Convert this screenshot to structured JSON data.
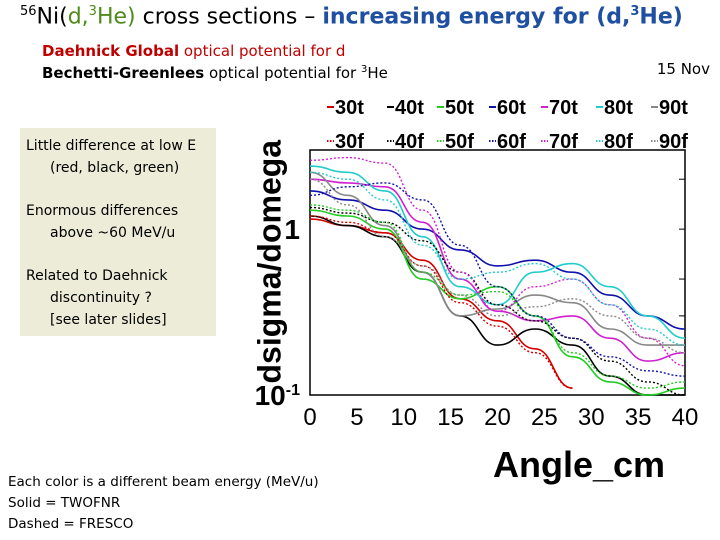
{
  "title": {
    "superscript_mass": "56",
    "prefix": "Ni(",
    "d": "d,",
    "sup3": "3",
    "he": "He)",
    "rest": " cross sections – ",
    "highlight": "increasing energy for (d,",
    "highlight_sup": "3",
    "highlight_end": "He)"
  },
  "subtitle1": {
    "bold": "Daehnick Global",
    "rest": " optical potential for d"
  },
  "subtitle2": {
    "bold": "Bechetti-Greenlees",
    "rest": " optical potential for ",
    "sup": "3",
    "end": "He"
  },
  "date": "15 Nov",
  "notes": {
    "n1a": "Little difference at low E",
    "n1b": "(red, black, green)",
    "n2a": "Enormous differences",
    "n2b": "above ~60 MeV/u",
    "n3a": "Related to Daehnick",
    "n3b": "discontinuity ?",
    "n3c": "[see later slides]"
  },
  "footer": {
    "line1": "Each color is a different beam energy (MeV/u)",
    "line2": "Solid = TWOFNR",
    "line3": "Dashed = FRESCO"
  },
  "chart_data": {
    "type": "line",
    "xlabel": "Angle_cm",
    "ylabel": "dsigma/domega",
    "xlim": [
      0,
      40
    ],
    "ylim": [
      0.1,
      3
    ],
    "yscale": "log",
    "xticks": [
      "0",
      "5",
      "10",
      "15",
      "20",
      "25",
      "30",
      "35",
      "40"
    ],
    "yticks": [
      {
        "value": 1,
        "label": "1"
      },
      {
        "value": 0.1,
        "label": "10-1"
      }
    ],
    "legend_placement": "top",
    "series": [
      {
        "name": "30t",
        "color": "#d40000",
        "dash": false,
        "x": [
          0,
          4,
          8,
          12,
          16,
          20,
          24,
          28
        ],
        "y": [
          1.15,
          1.05,
          0.95,
          0.65,
          0.38,
          0.28,
          0.19,
          0.11
        ]
      },
      {
        "name": "40t",
        "color": "#000000",
        "dash": false,
        "x": [
          0,
          4,
          8,
          12,
          16,
          20,
          24,
          28,
          32,
          36,
          40
        ],
        "y": [
          1.2,
          1.05,
          0.9,
          0.55,
          0.3,
          0.2,
          0.25,
          0.2,
          0.13,
          0.1,
          0.1
        ]
      },
      {
        "name": "50t",
        "color": "#22cc22",
        "dash": false,
        "x": [
          0,
          4,
          8,
          12,
          16,
          20,
          24,
          28,
          32,
          36,
          40
        ],
        "y": [
          1.3,
          1.2,
          1.0,
          0.5,
          0.38,
          0.45,
          0.3,
          0.17,
          0.12,
          0.1,
          0.11
        ]
      },
      {
        "name": "60t",
        "color": "#1010aa",
        "dash": false,
        "x": [
          0,
          4,
          8,
          12,
          16,
          20,
          24,
          28,
          32,
          36,
          40
        ],
        "y": [
          1.7,
          1.5,
          1.3,
          1.0,
          0.75,
          0.6,
          0.65,
          0.55,
          0.4,
          0.3,
          0.25
        ]
      },
      {
        "name": "70t",
        "color": "#d020d0",
        "dash": false,
        "x": [
          0,
          4,
          8,
          12,
          16,
          20,
          24,
          28,
          32,
          36,
          40
        ],
        "y": [
          2.0,
          1.9,
          1.8,
          1.1,
          0.5,
          0.32,
          0.28,
          0.3,
          0.22,
          0.16,
          0.18
        ]
      },
      {
        "name": "80t",
        "color": "#22cccc",
        "dash": false,
        "x": [
          0,
          4,
          8,
          12,
          16,
          20,
          24,
          28,
          32,
          36,
          40
        ],
        "y": [
          2.4,
          2.2,
          1.7,
          0.9,
          0.45,
          0.35,
          0.55,
          0.62,
          0.45,
          0.3,
          0.22
        ]
      },
      {
        "name": "90t",
        "color": "#888888",
        "dash": false,
        "x": [
          0,
          4,
          8,
          12,
          16,
          20,
          24,
          28,
          32,
          36,
          40
        ],
        "y": [
          2.2,
          1.6,
          1.05,
          0.55,
          0.3,
          0.33,
          0.4,
          0.36,
          0.25,
          0.2,
          0.2
        ]
      },
      {
        "name": "30f",
        "color": "#d40000",
        "dash": true,
        "x": [
          0,
          4,
          8,
          12,
          16,
          20,
          24,
          28
        ],
        "y": [
          1.2,
          1.1,
          0.95,
          0.6,
          0.36,
          0.26,
          0.18,
          0.11
        ]
      },
      {
        "name": "40f",
        "color": "#000000",
        "dash": true,
        "x": [
          0,
          4,
          8,
          12,
          16,
          20,
          24,
          28,
          32,
          36,
          40
        ],
        "y": [
          1.35,
          1.25,
          1.1,
          0.85,
          0.55,
          0.35,
          0.28,
          0.22,
          0.16,
          0.12,
          0.1
        ]
      },
      {
        "name": "50f",
        "color": "#22cc22",
        "dash": true,
        "x": [
          0,
          4,
          8,
          12,
          16,
          20,
          24,
          28,
          32,
          36,
          40
        ],
        "y": [
          1.4,
          1.3,
          1.1,
          0.55,
          0.4,
          0.42,
          0.3,
          0.18,
          0.13,
          0.11,
          0.12
        ]
      },
      {
        "name": "60f",
        "color": "#1010aa",
        "dash": true,
        "x": [
          0,
          4,
          8,
          12,
          16,
          20,
          24,
          28,
          32,
          36,
          40
        ],
        "y": [
          1.6,
          1.8,
          1.9,
          1.5,
          0.8,
          0.45,
          0.3,
          0.22,
          0.17,
          0.14,
          0.13
        ]
      },
      {
        "name": "70f",
        "color": "#d020d0",
        "dash": true,
        "x": [
          0,
          4,
          8,
          12,
          16,
          20,
          24,
          28,
          32,
          36,
          40
        ],
        "y": [
          2.6,
          2.7,
          2.5,
          1.3,
          0.55,
          0.32,
          0.45,
          0.5,
          0.35,
          0.22,
          0.15
        ]
      },
      {
        "name": "80f",
        "color": "#22cccc",
        "dash": true,
        "x": [
          0,
          4,
          8,
          12,
          16,
          20,
          24,
          28,
          32,
          36,
          40
        ],
        "y": [
          2.2,
          2.0,
          1.5,
          0.8,
          0.5,
          0.55,
          0.62,
          0.5,
          0.35,
          0.25,
          0.2
        ]
      },
      {
        "name": "90f",
        "color": "#888888",
        "dash": true,
        "x": [
          0,
          4,
          8,
          12,
          16,
          20,
          24,
          28,
          32,
          36,
          40
        ],
        "y": [
          2.0,
          1.4,
          0.9,
          0.6,
          0.4,
          0.3,
          0.34,
          0.38,
          0.3,
          0.22,
          0.18
        ]
      }
    ]
  }
}
